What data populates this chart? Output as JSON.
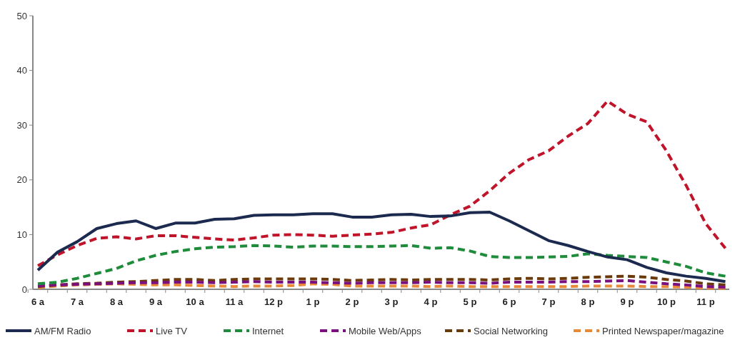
{
  "chart_data": {
    "type": "line",
    "categories": [
      "6 a",
      null,
      "7 a",
      null,
      "8 a",
      null,
      "9 a",
      null,
      "10 a",
      null,
      "11 a",
      null,
      "12 p",
      null,
      "1 p",
      null,
      "2 p",
      null,
      "3 p",
      null,
      "4 p",
      null,
      "5 p",
      null,
      "6 p",
      null,
      "7 p",
      null,
      "8 p",
      null,
      "9 p",
      null,
      "10 p",
      null,
      "11 p",
      null
    ],
    "ylim": [
      0,
      50
    ],
    "yticks": [
      0,
      10,
      20,
      30,
      40,
      50
    ],
    "grid": false,
    "legend": "bottom",
    "marker": "none",
    "series": [
      {
        "name": "AM/FM Radio",
        "color": "#1b2a4e",
        "line_style": "solid",
        "values": [
          3.5,
          6.8,
          8.7,
          11.1,
          12,
          12.5,
          11.1,
          12.1,
          12.1,
          12.8,
          12.9,
          13.5,
          13.6,
          13.6,
          13.8,
          13.8,
          13.2,
          13.2,
          13.6,
          13.7,
          13.3,
          13.4,
          14,
          14.1,
          12.5,
          10.7,
          8.9,
          8,
          6.9,
          5.9,
          5.4,
          4,
          3,
          2.4,
          2,
          1.4
        ]
      },
      {
        "name": "Live TV",
        "color": "#c0142a",
        "line_style": "dashed",
        "values": [
          4.3,
          6.3,
          8,
          9.3,
          9.6,
          9.2,
          9.8,
          9.8,
          9.5,
          9.2,
          9,
          9.4,
          9.9,
          10,
          9.9,
          9.7,
          9.9,
          10.1,
          10.4,
          11.2,
          11.8,
          13.6,
          15.2,
          18,
          21.2,
          23.7,
          25.3,
          28,
          30.3,
          34.4,
          32,
          30.6,
          25.3,
          19,
          12,
          7.5
        ]
      },
      {
        "name": "Internet",
        "color": "#1e8c3a",
        "line_style": "dashed",
        "values": [
          1,
          1.3,
          2,
          2.9,
          3.8,
          5.2,
          6.2,
          6.9,
          7.4,
          7.7,
          7.8,
          8,
          7.9,
          7.7,
          7.9,
          7.9,
          7.8,
          7.8,
          7.9,
          8,
          7.5,
          7.6,
          7,
          6,
          5.8,
          5.8,
          5.9,
          6,
          6.5,
          6.2,
          6,
          5.8,
          5,
          4.2,
          3,
          2.4
        ]
      },
      {
        "name": "Mobile Web/Apps",
        "color": "#7a1080",
        "line_style": "dashed",
        "values": [
          0.6,
          0.8,
          0.9,
          1,
          1.1,
          1.2,
          1.2,
          1.3,
          1.3,
          1.2,
          1.3,
          1.4,
          1.3,
          1.3,
          1.3,
          1.2,
          1.1,
          1.2,
          1.2,
          1.2,
          1.3,
          1.2,
          1.2,
          1.1,
          1.3,
          1.3,
          1.3,
          1.4,
          1.4,
          1.5,
          1.6,
          1.3,
          1,
          0.8,
          0.5,
          0.4
        ]
      },
      {
        "name": "Social Networking",
        "color": "#6b3a0a",
        "line_style": "dashed",
        "values": [
          0.5,
          0.8,
          1,
          1.1,
          1.3,
          1.4,
          1.6,
          1.8,
          1.8,
          1.6,
          1.8,
          1.9,
          1.9,
          1.9,
          1.9,
          1.8,
          1.6,
          1.7,
          1.8,
          1.7,
          1.8,
          1.8,
          1.8,
          1.7,
          1.9,
          2,
          1.9,
          2,
          2.2,
          2.3,
          2.4,
          2.2,
          1.8,
          1.5,
          1,
          0.8
        ]
      },
      {
        "name": "Printed Newspaper/magazine",
        "color": "#e8893a",
        "line_style": "dashed",
        "values": [
          0.3,
          0.6,
          0.8,
          0.9,
          1,
          0.9,
          0.8,
          0.8,
          0.7,
          0.6,
          0.5,
          0.6,
          0.6,
          0.7,
          1,
          0.9,
          0.6,
          0.6,
          0.6,
          0.6,
          0.5,
          0.6,
          0.5,
          0.5,
          0.5,
          0.5,
          0.5,
          0.5,
          0.6,
          0.6,
          0.6,
          0.5,
          0.5,
          0.4,
          0.2,
          0.2
        ]
      }
    ]
  }
}
